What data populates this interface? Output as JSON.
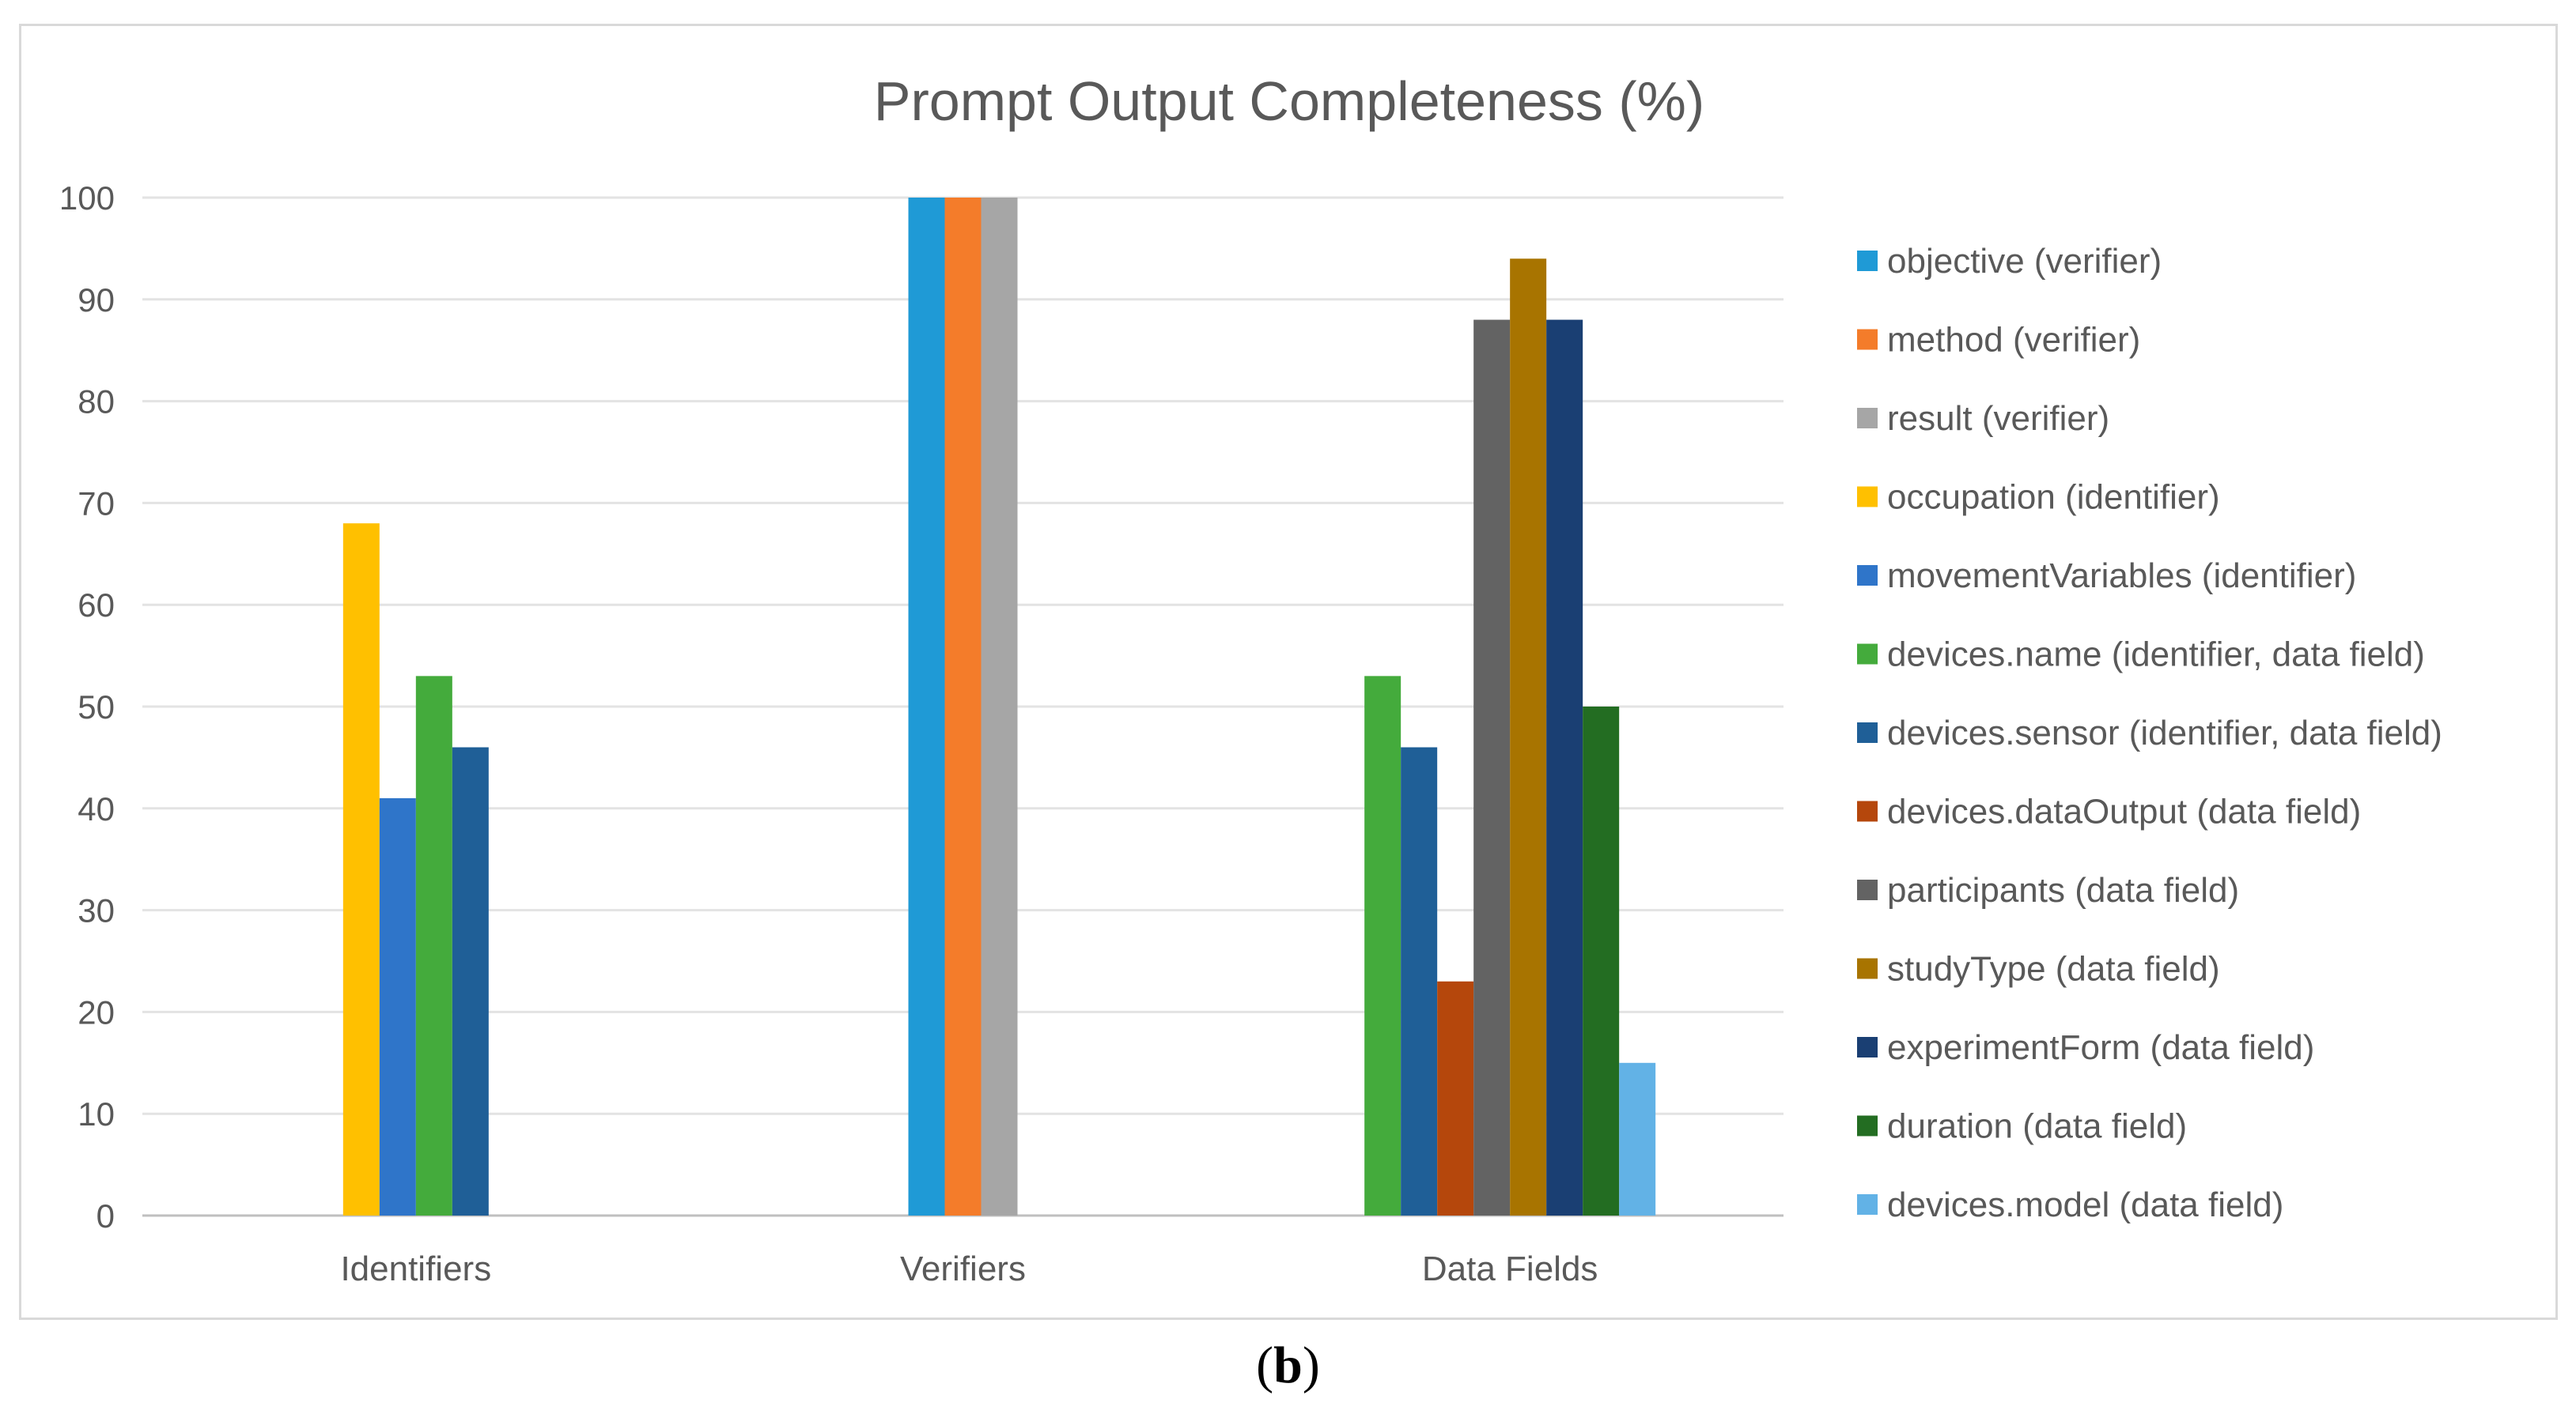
{
  "figure_label": {
    "open": "(",
    "letter": "b",
    "close": ")"
  },
  "chart_data": {
    "type": "bar",
    "title": "Prompt Output Completeness (%)",
    "xlabel": "",
    "ylabel": "",
    "ylim": [
      0,
      100
    ],
    "yticks": [
      0,
      10,
      20,
      30,
      40,
      50,
      60,
      70,
      80,
      90,
      100
    ],
    "grid": true,
    "legend_position": "right",
    "categories": [
      "Identifiers",
      "Verifiers",
      "Data Fields"
    ],
    "series": [
      {
        "name": "objective (verifier)",
        "color": "#1f9ad6",
        "values": [
          null,
          100,
          null
        ]
      },
      {
        "name": "method (verifier)",
        "color": "#f47c2a",
        "values": [
          null,
          100,
          null
        ]
      },
      {
        "name": "result (verifier)",
        "color": "#a6a6a6",
        "values": [
          null,
          100,
          null
        ]
      },
      {
        "name": "occupation (identifier)",
        "color": "#ffc000",
        "values": [
          68,
          null,
          null
        ]
      },
      {
        "name": "movementVariables (identifier)",
        "color": "#2f75c9",
        "values": [
          41,
          null,
          null
        ]
      },
      {
        "name": "devices.name (identifier, data field)",
        "color": "#44ab3c",
        "values": [
          53,
          null,
          53
        ]
      },
      {
        "name": "devices.sensor (identifier, data field)",
        "color": "#1f5f97",
        "values": [
          46,
          null,
          46
        ]
      },
      {
        "name": "devices.dataOutput (data field)",
        "color": "#b5470c",
        "values": [
          null,
          null,
          23
        ]
      },
      {
        "name": "participants (data field)",
        "color": "#636363",
        "values": [
          null,
          null,
          88
        ]
      },
      {
        "name": "studyType (data field)",
        "color": "#a87400",
        "values": [
          null,
          null,
          94
        ]
      },
      {
        "name": "experimentForm (data field)",
        "color": "#1a3f73",
        "values": [
          null,
          null,
          88
        ]
      },
      {
        "name": "duration (data field)",
        "color": "#236d22",
        "values": [
          null,
          null,
          50
        ]
      },
      {
        "name": "devices.model (data field)",
        "color": "#62b2e6",
        "values": [
          null,
          null,
          15
        ]
      }
    ]
  }
}
